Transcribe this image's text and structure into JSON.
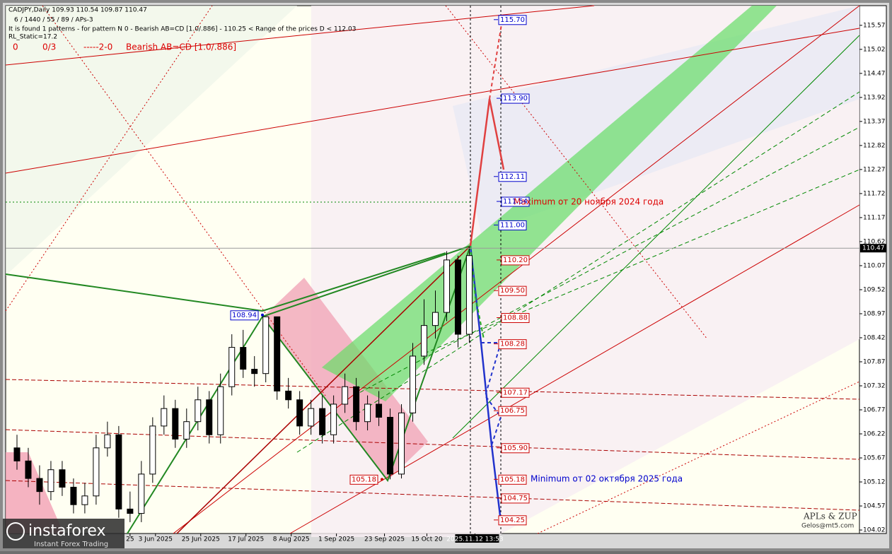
{
  "chart_data": {
    "type": "candlestick",
    "header": [
      "CADJPY,Daily  109.93 110.54 109.87 110.47",
      "6 / 1440 / 55 / 89 / APs-3",
      "It is found 1 patterns  -  for pattern N 0 - Bearish AB=CD [1.0/.886] - 110.25 < Range of the prices D < 112.03",
      "RL_Static=17.2"
    ],
    "status_row": [
      "0",
      "0/3",
      "-----2-0",
      "Bearish AB=CD [1.0/.886]"
    ],
    "annotations": [
      "Maximum от 20 ноября 2024 года",
      "Minimum от 02 октября 2025 года"
    ],
    "signature": [
      "APLs & ZUP",
      "Gelos@mt5.com"
    ],
    "watermark": [
      "instaforex",
      "Instant Forex Trading"
    ],
    "current_price": 110.47,
    "ylim": [
      103.94,
      116.02
    ],
    "yticks": [
      115.57,
      115.02,
      114.47,
      113.92,
      113.37,
      112.82,
      112.27,
      111.72,
      111.17,
      110.62,
      110.07,
      109.52,
      108.97,
      108.42,
      107.87,
      107.32,
      106.77,
      106.22,
      105.67,
      105.12,
      104.57,
      104.02
    ],
    "xlim": [
      0,
      302
    ],
    "xticks": [
      {
        "value": 44,
        "label": "25"
      },
      {
        "value": 53,
        "label": "3 Jun 2025"
      },
      {
        "value": 69,
        "label": "25 Jun 2025"
      },
      {
        "value": 85,
        "label": "17 Jul 2025"
      },
      {
        "value": 101,
        "label": "8 Aug 2025"
      },
      {
        "value": 117,
        "label": "1 Sep 2025"
      },
      {
        "value": 134,
        "label": "23 Sep 2025"
      },
      {
        "value": 149,
        "label": "15 Oct 20"
      },
      {
        "value": 166,
        "label": "2025.11.12 13:53"
      }
    ],
    "x": [
      4,
      8,
      12,
      16,
      20,
      24,
      28,
      32,
      36,
      40,
      44,
      48,
      52,
      56,
      60,
      64,
      68,
      72,
      76,
      80,
      84,
      88,
      92,
      96,
      100,
      104,
      108,
      112,
      116,
      120,
      124,
      128,
      132,
      136,
      140,
      144,
      148,
      152,
      156,
      160,
      164
    ],
    "open": [
      105.9,
      105.6,
      105.2,
      104.9,
      105.4,
      105.0,
      104.6,
      104.8,
      105.9,
      106.2,
      104.5,
      104.4,
      105.3,
      106.4,
      106.8,
      106.1,
      106.5,
      107.0,
      106.2,
      107.3,
      108.2,
      107.7,
      107.6,
      108.9,
      107.2,
      107.0,
      106.4,
      106.8,
      106.2,
      106.9,
      107.3,
      106.5,
      106.9,
      106.6,
      105.3,
      106.7,
      108.0,
      108.7,
      109.0,
      110.2,
      108.5
    ],
    "high": [
      106.2,
      105.9,
      105.5,
      105.6,
      105.6,
      105.2,
      105.1,
      106.2,
      106.5,
      106.4,
      104.9,
      105.6,
      106.6,
      107.1,
      107.0,
      106.8,
      107.3,
      107.2,
      107.6,
      108.5,
      108.6,
      108.0,
      108.9,
      108.9,
      107.5,
      107.2,
      107.0,
      107.1,
      107.1,
      107.6,
      107.5,
      107.1,
      107.2,
      106.8,
      106.9,
      108.3,
      109.3,
      109.5,
      110.4,
      110.3,
      110.5
    ],
    "low": [
      105.4,
      105.0,
      104.6,
      104.7,
      104.8,
      104.4,
      104.4,
      104.6,
      105.7,
      104.3,
      104.2,
      104.2,
      105.1,
      106.2,
      105.9,
      105.9,
      106.3,
      106.0,
      106.0,
      107.1,
      107.5,
      107.3,
      107.4,
      107.0,
      106.8,
      106.2,
      106.2,
      106.0,
      106.0,
      106.7,
      106.3,
      106.3,
      106.4,
      105.18,
      105.2,
      106.5,
      107.8,
      108.4,
      108.8,
      108.2,
      108.3
    ],
    "close": [
      105.6,
      105.2,
      104.9,
      105.4,
      105.0,
      104.6,
      104.8,
      105.9,
      106.2,
      104.5,
      104.4,
      105.3,
      106.4,
      106.8,
      106.1,
      106.5,
      107.0,
      106.2,
      107.3,
      108.2,
      107.7,
      107.6,
      108.9,
      107.2,
      107.0,
      106.4,
      106.8,
      106.2,
      106.9,
      107.3,
      106.5,
      106.9,
      106.6,
      105.3,
      106.7,
      108.0,
      108.7,
      109.0,
      110.2,
      108.5,
      110.3
    ],
    "up_color": "#ffffff",
    "down_color": "#000000",
    "pivots": [
      {
        "value": 108.94,
        "color": "#0000cc"
      },
      {
        "value": 105.18,
        "color": "#cc0000"
      }
    ],
    "levels": [
      {
        "value": 115.7,
        "label": "115.70",
        "color": "#0000cc"
      },
      {
        "value": 113.9,
        "label": "113.90",
        "color": "#0000cc"
      },
      {
        "value": 112.11,
        "color": "#0000cc"
      },
      {
        "value": 111.54,
        "color": "#0000cc"
      },
      {
        "value": 111.0,
        "label": "111.00",
        "color": "#0000cc"
      },
      {
        "value": 110.2,
        "label": "110.20",
        "color": "#cc0000"
      },
      {
        "value": 109.5,
        "label": "109.50",
        "color": "#cc0000"
      },
      {
        "value": 108.88,
        "color": "#cc0000"
      },
      {
        "value": 108.28,
        "color": "#cc0000"
      },
      {
        "value": 107.17,
        "color": "#cc0000"
      },
      {
        "value": 106.75,
        "color": "#cc0000"
      },
      {
        "value": 105.9,
        "label": "105.90",
        "color": "#cc0000"
      },
      {
        "value": 105.18,
        "color": "#cc0000"
      },
      {
        "value": 104.75,
        "color": "#cc0000"
      },
      {
        "value": 104.25,
        "color": "#cc0000"
      }
    ]
  }
}
